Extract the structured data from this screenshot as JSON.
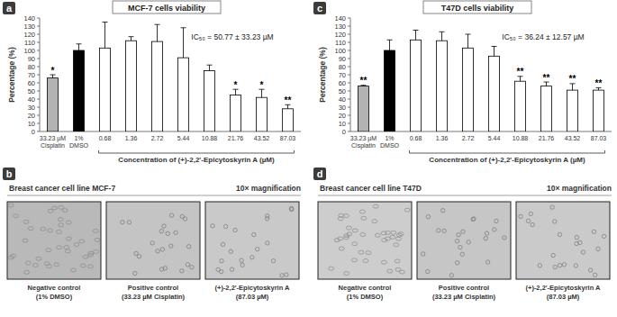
{
  "chart_data": [
    {
      "type": "bar",
      "panel": "a",
      "title": "MCF-7 cells viability",
      "categories": [
        "33.23 µM Cisplatin",
        "1% DMSO",
        "0.68",
        "1.36",
        "2.72",
        "5.44",
        "10.88",
        "21.76",
        "43.52",
        "87.03"
      ],
      "values": [
        66,
        100,
        103,
        112,
        111,
        91,
        75,
        45,
        42,
        28
      ],
      "errors": [
        4,
        8,
        32,
        5,
        21,
        37,
        7,
        7,
        10,
        5
      ],
      "significance": [
        "*",
        null,
        null,
        null,
        null,
        null,
        null,
        "*",
        "*",
        "**"
      ],
      "colors": [
        "#b3b3b3",
        "#000000",
        "#ffffff",
        "#ffffff",
        "#ffffff",
        "#ffffff",
        "#ffffff",
        "#ffffff",
        "#ffffff",
        "#ffffff"
      ],
      "ylim": [
        0,
        140
      ],
      "yticks": [
        0,
        10,
        20,
        30,
        40,
        50,
        60,
        70,
        80,
        90,
        100,
        110,
        120,
        130,
        140
      ],
      "y_label": "Percentage (%)",
      "x_label": "Concentration of (+)-2,2'-Epicytoskyrin A (µM)",
      "annotation": "IC₅₀ = 50.77 ± 33.23 µM"
    },
    {
      "type": "bar",
      "panel": "c",
      "title": "T47D cells viability",
      "categories": [
        "33.23 µM Cisplatin",
        "1% DMSO",
        "0.68",
        "1.36",
        "2.72",
        "5.44",
        "10.88",
        "21.76",
        "43.52",
        "87.03"
      ],
      "values": [
        56,
        100,
        113,
        112,
        103,
        93,
        62,
        56,
        51,
        51
      ],
      "errors": [
        1,
        13,
        12,
        11,
        17,
        12,
        6,
        5,
        8,
        3
      ],
      "significance": [
        "**",
        null,
        null,
        null,
        null,
        null,
        "**",
        "**",
        "**",
        "**"
      ],
      "colors": [
        "#b3b3b3",
        "#000000",
        "#ffffff",
        "#ffffff",
        "#ffffff",
        "#ffffff",
        "#ffffff",
        "#ffffff",
        "#ffffff",
        "#ffffff"
      ],
      "ylim": [
        0,
        140
      ],
      "yticks": [
        0,
        10,
        20,
        30,
        40,
        50,
        60,
        70,
        80,
        90,
        100,
        110,
        120,
        130,
        140
      ],
      "y_label": "Percentage (%)",
      "x_label": "Concentration of (+)-2,2'-Epicytoskyrin A (µM)",
      "annotation": "IC₅₀ = 36.24 ± 12.57 µM"
    }
  ],
  "image_panels": [
    {
      "panel": "b",
      "title": "Breast cancer cell line MCF-7",
      "magnification": "10× magnification",
      "images": [
        {
          "caption": [
            "Negative control",
            "(1% DMSO)"
          ]
        },
        {
          "caption": [
            "Positive control",
            "(33.23 µM Cisplatin)"
          ]
        },
        {
          "caption": [
            "(+)-2,2'-Epicytoskyrin A",
            "(87.03 µM)"
          ]
        }
      ]
    },
    {
      "panel": "d",
      "title": "Breast cancer cell line T47D",
      "magnification": "10× magnification",
      "images": [
        {
          "caption": [
            "Negative control",
            "(1% DMSO)"
          ]
        },
        {
          "caption": [
            "Positive control",
            "(33.23 µM Cisplatin)"
          ]
        },
        {
          "caption": [
            "(+)-2,2'-Epicytoskyrin A",
            "(87.03 µM)"
          ]
        }
      ]
    }
  ]
}
